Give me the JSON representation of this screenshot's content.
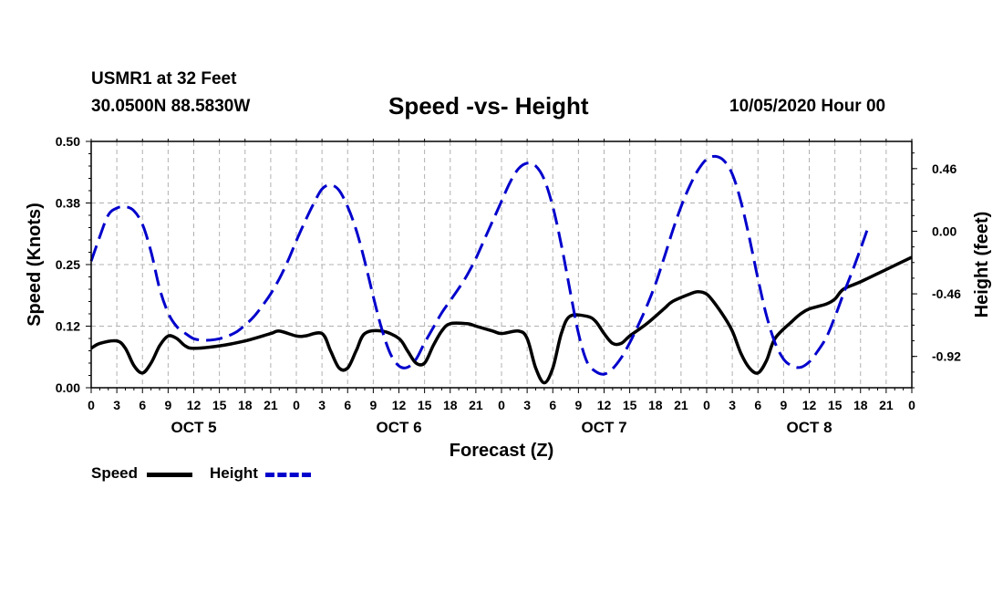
{
  "header": {
    "station": "USMR1 at 32 Feet",
    "coords": "30.0500N 88.5830W",
    "title": "Speed -vs- Height",
    "date": "10/05/2020 Hour 00"
  },
  "legend": {
    "speed_label": "Speed",
    "height_label": "Height"
  },
  "colors": {
    "speed": "#000000",
    "height": "#0000cc",
    "grid": "#b0b0b0"
  },
  "chart_data": {
    "type": "line",
    "title": "Speed -vs- Height",
    "xlabel": "Forecast (Z)",
    "ylabel": "Speed (Knots)",
    "y2label": "Height (feet)",
    "x_range_hours": [
      0,
      96
    ],
    "x_tick_labels": [
      "0",
      "3",
      "6",
      "9",
      "12",
      "15",
      "18",
      "21",
      "0",
      "3",
      "6",
      "9",
      "12",
      "15",
      "18",
      "21",
      "0",
      "3",
      "6",
      "9",
      "12",
      "15",
      "18",
      "21",
      "0",
      "3",
      "6",
      "9",
      "12",
      "15",
      "18",
      "21",
      "0"
    ],
    "day_labels": [
      {
        "label": "OCT 5",
        "hour": 12
      },
      {
        "label": "OCT 6",
        "hour": 36
      },
      {
        "label": "OCT 7",
        "hour": 60
      },
      {
        "label": "OCT 8",
        "hour": 84
      }
    ],
    "y_left": {
      "range": [
        0.0,
        0.5
      ],
      "ticks": [
        0.0,
        0.125,
        0.25,
        0.375,
        0.5
      ],
      "tick_labels": [
        "0.00",
        "0.12",
        "0.25",
        "0.38",
        "0.50"
      ]
    },
    "y_right": {
      "range": [
        -1.15,
        0.66
      ],
      "ticks": [
        0.46,
        0.0,
        -0.46,
        -0.92
      ],
      "tick_labels": [
        "0.46",
        "0.00",
        "-0.46",
        "-0.92"
      ]
    },
    "grid": true,
    "legend_position": "bottom-left",
    "series": [
      {
        "name": "Speed",
        "axis": "left",
        "style": "solid",
        "points": [
          [
            0,
            0.08
          ],
          [
            1,
            0.09
          ],
          [
            3,
            0.095
          ],
          [
            4,
            0.08
          ],
          [
            5,
            0.045
          ],
          [
            6,
            0.03
          ],
          [
            7,
            0.05
          ],
          [
            8,
            0.085
          ],
          [
            9,
            0.105
          ],
          [
            10,
            0.1
          ],
          [
            11,
            0.085
          ],
          [
            12,
            0.08
          ],
          [
            15,
            0.085
          ],
          [
            18,
            0.095
          ],
          [
            21,
            0.11
          ],
          [
            22,
            0.115
          ],
          [
            24,
            0.105
          ],
          [
            25,
            0.105
          ],
          [
            27,
            0.11
          ],
          [
            28,
            0.075
          ],
          [
            29,
            0.04
          ],
          [
            30,
            0.04
          ],
          [
            31,
            0.075
          ],
          [
            32,
            0.11
          ],
          [
            34,
            0.115
          ],
          [
            36,
            0.1
          ],
          [
            37,
            0.075
          ],
          [
            38,
            0.05
          ],
          [
            39,
            0.05
          ],
          [
            40,
            0.085
          ],
          [
            41,
            0.115
          ],
          [
            42,
            0.13
          ],
          [
            44,
            0.13
          ],
          [
            45,
            0.125
          ],
          [
            47,
            0.115
          ],
          [
            48,
            0.11
          ],
          [
            50,
            0.115
          ],
          [
            51,
            0.1
          ],
          [
            52,
            0.04
          ],
          [
            53,
            0.01
          ],
          [
            54,
            0.04
          ],
          [
            55,
            0.11
          ],
          [
            56,
            0.145
          ],
          [
            58,
            0.145
          ],
          [
            59,
            0.135
          ],
          [
            60,
            0.11
          ],
          [
            61,
            0.09
          ],
          [
            62,
            0.09
          ],
          [
            63,
            0.105
          ],
          [
            65,
            0.13
          ],
          [
            67,
            0.16
          ],
          [
            68,
            0.175
          ],
          [
            70,
            0.19
          ],
          [
            71,
            0.195
          ],
          [
            72,
            0.19
          ],
          [
            73,
            0.17
          ],
          [
            74,
            0.145
          ],
          [
            75,
            0.115
          ],
          [
            76,
            0.07
          ],
          [
            77,
            0.04
          ],
          [
            78,
            0.03
          ],
          [
            79,
            0.055
          ],
          [
            80,
            0.1
          ],
          [
            82,
            0.135
          ],
          [
            83,
            0.15
          ],
          [
            84,
            0.16
          ],
          [
            86,
            0.17
          ],
          [
            87,
            0.18
          ],
          [
            88,
            0.2
          ],
          [
            90,
            0.215
          ],
          [
            93,
            0.24
          ],
          [
            96,
            0.265
          ]
        ]
      },
      {
        "name": "Height",
        "axis": "right",
        "style": "dashed",
        "points": [
          [
            0,
            -0.22
          ],
          [
            1,
            -0.04
          ],
          [
            2,
            0.12
          ],
          [
            3,
            0.17
          ],
          [
            4,
            0.18
          ],
          [
            5,
            0.15
          ],
          [
            6,
            0.05
          ],
          [
            7,
            -0.15
          ],
          [
            8,
            -0.42
          ],
          [
            9,
            -0.6
          ],
          [
            10,
            -0.7
          ],
          [
            11,
            -0.75
          ],
          [
            12,
            -0.79
          ],
          [
            13,
            -0.8
          ],
          [
            14,
            -0.8
          ],
          [
            15,
            -0.79
          ],
          [
            16,
            -0.77
          ],
          [
            17,
            -0.74
          ],
          [
            18,
            -0.69
          ],
          [
            19,
            -0.63
          ],
          [
            20,
            -0.55
          ],
          [
            21,
            -0.46
          ],
          [
            22,
            -0.35
          ],
          [
            23,
            -0.22
          ],
          [
            24,
            -0.07
          ],
          [
            25,
            0.07
          ],
          [
            26,
            0.2
          ],
          [
            27,
            0.31
          ],
          [
            28,
            0.34
          ],
          [
            29,
            0.3
          ],
          [
            30,
            0.18
          ],
          [
            31,
            0.01
          ],
          [
            32,
            -0.22
          ],
          [
            33,
            -0.48
          ],
          [
            34,
            -0.72
          ],
          [
            35,
            -0.9
          ],
          [
            36,
            -0.99
          ],
          [
            37,
            -1.0
          ],
          [
            38,
            -0.94
          ],
          [
            39,
            -0.82
          ],
          [
            40,
            -0.71
          ],
          [
            41,
            -0.6
          ],
          [
            42,
            -0.51
          ],
          [
            43,
            -0.42
          ],
          [
            44,
            -0.32
          ],
          [
            45,
            -0.2
          ],
          [
            46,
            -0.06
          ],
          [
            47,
            0.08
          ],
          [
            48,
            0.22
          ],
          [
            49,
            0.36
          ],
          [
            50,
            0.46
          ],
          [
            51,
            0.5
          ],
          [
            52,
            0.48
          ],
          [
            53,
            0.38
          ],
          [
            54,
            0.18
          ],
          [
            55,
            -0.1
          ],
          [
            56,
            -0.43
          ],
          [
            57,
            -0.75
          ],
          [
            58,
            -0.96
          ],
          [
            59,
            -1.03
          ],
          [
            60,
            -1.05
          ],
          [
            61,
            -1.01
          ],
          [
            62,
            -0.93
          ],
          [
            63,
            -0.82
          ],
          [
            64,
            -0.69
          ],
          [
            65,
            -0.55
          ],
          [
            66,
            -0.39
          ],
          [
            67,
            -0.2
          ],
          [
            68,
            0.0
          ],
          [
            69,
            0.18
          ],
          [
            70,
            0.33
          ],
          [
            71,
            0.45
          ],
          [
            72,
            0.53
          ],
          [
            73,
            0.55
          ],
          [
            74,
            0.52
          ],
          [
            75,
            0.42
          ],
          [
            76,
            0.22
          ],
          [
            77,
            -0.05
          ],
          [
            78,
            -0.35
          ],
          [
            79,
            -0.62
          ],
          [
            80,
            -0.82
          ],
          [
            81,
            -0.94
          ],
          [
            82,
            -0.99
          ],
          [
            83,
            -1.0
          ],
          [
            84,
            -0.96
          ],
          [
            85,
            -0.88
          ],
          [
            86,
            -0.78
          ],
          [
            87,
            -0.63
          ],
          [
            88,
            -0.46
          ],
          [
            89,
            -0.3
          ],
          [
            90,
            -0.13
          ],
          [
            91,
            0.05
          ]
        ]
      }
    ]
  }
}
